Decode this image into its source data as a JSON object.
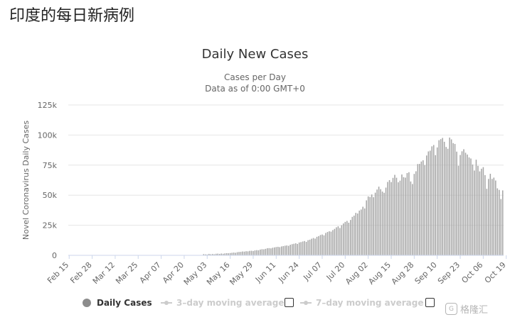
{
  "page": {
    "heading": "印度的每日新病例"
  },
  "chart_data": {
    "type": "bar",
    "title": "Daily New Cases",
    "subtitle": "Cases per Day",
    "subtitle2": "Data as of 0:00 GMT+0",
    "xlabel": "",
    "ylabel": "Novel Coronavirus Daily Cases",
    "ylim": [
      0,
      125000
    ],
    "yticks": [
      0,
      25000,
      50000,
      75000,
      100000,
      125000
    ],
    "ytick_labels": [
      "0",
      "25k",
      "50k",
      "75k",
      "100k",
      "125k"
    ],
    "start_date": "Feb 15",
    "xtick_labels": [
      "Feb 15",
      "Feb 28",
      "Mar 12",
      "Mar 25",
      "Apr 07",
      "Apr 20",
      "May 03",
      "May 16",
      "May 29",
      "Jun 11",
      "Jun 24",
      "Jul 07",
      "Jul 20",
      "Aug 02",
      "Aug 15",
      "Aug 28",
      "Sep 10",
      "Sep 23",
      "Oct 06",
      "Oct 19"
    ],
    "xtick_step_days": 13,
    "bar_color": "#a6a6a6",
    "grid": true,
    "legend_position": "bottom",
    "values": [
      0,
      0,
      0,
      0,
      0,
      0,
      0,
      0,
      0,
      0,
      0,
      0,
      0,
      0,
      0,
      0,
      0,
      0,
      0,
      0,
      0,
      0,
      0,
      0,
      0,
      0,
      0,
      0,
      0,
      0,
      0,
      0,
      0,
      0,
      0,
      0,
      0,
      0,
      0,
      0,
      0,
      0,
      0,
      0,
      0,
      0,
      0,
      0,
      0,
      0,
      0,
      0,
      0,
      0,
      0,
      0,
      0,
      0,
      0,
      0,
      0,
      0,
      0,
      0,
      0,
      0,
      0,
      0,
      0,
      0,
      0,
      0,
      0,
      0,
      0,
      0,
      1000,
      800,
      700,
      1200,
      900,
      1100,
      900,
      1300,
      1400,
      1200,
      1500,
      1300,
      1600,
      1800,
      1700,
      1900,
      2100,
      2300,
      2100,
      2600,
      2800,
      2900,
      3200,
      3100,
      3400,
      3300,
      3700,
      3800,
      3600,
      4100,
      4300,
      4200,
      4800,
      5100,
      5000,
      5400,
      5900,
      6000,
      5800,
      6300,
      6600,
      6900,
      7100,
      6800,
      7400,
      7700,
      8000,
      8200,
      7900,
      8800,
      9300,
      9600,
      10000,
      9500,
      10700,
      11000,
      11500,
      11900,
      11200,
      12600,
      13000,
      13800,
      14400,
      13900,
      15400,
      16000,
      16900,
      17300,
      16600,
      18600,
      19400,
      20000,
      19700,
      21000,
      22000,
      23300,
      24100,
      22700,
      25000,
      26500,
      27800,
      28600,
      27100,
      29400,
      32000,
      33000,
      35300,
      34800,
      37200,
      38100,
      40400,
      39000,
      45700,
      49000,
      48500,
      50600,
      48300,
      52100,
      54700,
      57100,
      55000,
      53000,
      52000,
      56300,
      61000,
      62500,
      60900,
      64400,
      66900,
      64500,
      60700,
      62100,
      67200,
      65000,
      64600,
      68400,
      69100,
      61400,
      59300,
      67700,
      69900,
      75900,
      76000,
      78000,
      79000,
      75000,
      83000,
      86400,
      87000,
      90600,
      91700,
      83300,
      89700,
      95700,
      96600,
      97600,
      94400,
      90100,
      88600,
      97900,
      96400,
      93300,
      92600,
      86200,
      74500,
      83400,
      86500,
      88200,
      85300,
      83800,
      81400,
      80500,
      75500,
      70500,
      79500,
      74400,
      69800,
      72000,
      73300,
      66700,
      55300,
      63500,
      67800,
      63500,
      64600,
      62200,
      55700,
      54400,
      46800,
      54000
    ]
  },
  "legend": {
    "items": [
      {
        "label": "Daily Cases",
        "active": true
      },
      {
        "label": "3–day moving average",
        "active": false
      },
      {
        "label": "7–day moving average",
        "active": false
      }
    ]
  },
  "watermark": {
    "text": "格隆汇"
  }
}
